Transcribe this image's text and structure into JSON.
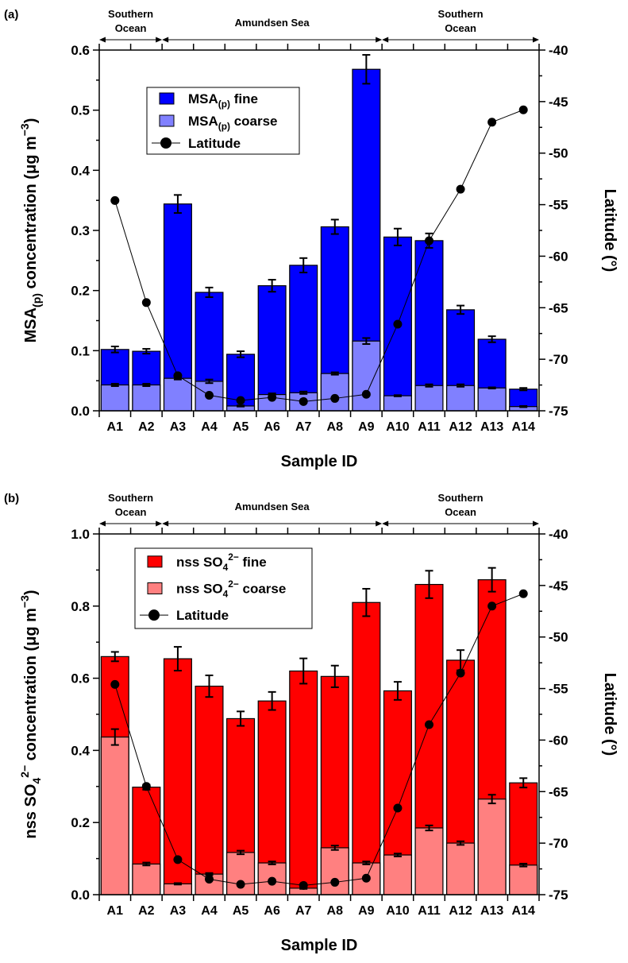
{
  "chart_data": [
    {
      "type": "bar",
      "stacked": true,
      "panel_label": "(a)",
      "regions": [
        {
          "label": [
            "Southern",
            "Ocean"
          ],
          "from": "A1",
          "to": "A2"
        },
        {
          "label": [
            "Amundsen Sea"
          ],
          "from": "A3",
          "to": "A9"
        },
        {
          "label": [
            "Southern",
            "Ocean"
          ],
          "from": "A10",
          "to": "A14"
        }
      ],
      "categories": [
        "A1",
        "A2",
        "A3",
        "A4",
        "A5",
        "A6",
        "A7",
        "A8",
        "A9",
        "A10",
        "A11",
        "A12",
        "A13",
        "A14"
      ],
      "xlabel": "Sample ID",
      "ylabel_parts": [
        {
          "t": "MSA"
        },
        {
          "t": "(p)",
          "sub": true
        },
        {
          "t": " concentration (μg m"
        },
        {
          "t": "−3",
          "sup": true
        },
        {
          "t": ")"
        }
      ],
      "ylim": [
        0,
        0.6
      ],
      "yticks": [
        "0.0",
        "0.1",
        "0.2",
        "0.3",
        "0.4",
        "0.5",
        "0.6"
      ],
      "y2label": "Latitude (°)",
      "y2lim": [
        -75,
        -40
      ],
      "y2ticks": [
        "-75",
        "-70",
        "-65",
        "-60",
        "-55",
        "-50",
        "-45",
        "-40"
      ],
      "legend_placement": "top-left",
      "series": [
        {
          "name_parts": [
            {
              "t": "MSA"
            },
            {
              "t": "(p)",
              "sub": true
            },
            {
              "t": " fine"
            }
          ],
          "role": "total",
          "color": "#0000ff",
          "values": [
            0.102,
            0.099,
            0.344,
            0.197,
            0.094,
            0.208,
            0.242,
            0.306,
            0.568,
            0.289,
            0.283,
            0.168,
            0.119,
            0.036
          ],
          "errors": [
            0.005,
            0.004,
            0.015,
            0.008,
            0.005,
            0.01,
            0.012,
            0.012,
            0.024,
            0.014,
            0.012,
            0.007,
            0.005,
            0.002
          ]
        },
        {
          "name_parts": [
            {
              "t": "MSA"
            },
            {
              "t": "(p)",
              "sub": true
            },
            {
              "t": " coarse"
            }
          ],
          "role": "coarse",
          "color": "#8080ff",
          "values": [
            0.043,
            0.043,
            0.054,
            0.049,
            0.008,
            0.027,
            0.03,
            0.062,
            0.116,
            0.025,
            0.042,
            0.042,
            0.038,
            0.007
          ],
          "errors": [
            0.002,
            0.002,
            0.002,
            0.003,
            0.001,
            0.002,
            0.002,
            0.002,
            0.005,
            0.001,
            0.002,
            0.002,
            0.001,
            0.001
          ]
        },
        {
          "name_parts": [
            {
              "t": "Latitude"
            }
          ],
          "role": "line",
          "axis": "right",
          "color": "#000000",
          "values": [
            -54.6,
            -64.5,
            -71.6,
            -73.5,
            -74.0,
            -73.7,
            -74.1,
            -73.8,
            -73.4,
            -66.6,
            -58.5,
            -53.5,
            -47.0,
            -45.8
          ]
        }
      ]
    },
    {
      "type": "bar",
      "stacked": true,
      "panel_label": "(b)",
      "regions": [
        {
          "label": [
            "Southern",
            "Ocean"
          ],
          "from": "A1",
          "to": "A2"
        },
        {
          "label": [
            "Amundsen Sea"
          ],
          "from": "A3",
          "to": "A9"
        },
        {
          "label": [
            "Southern",
            "Ocean"
          ],
          "from": "A10",
          "to": "A14"
        }
      ],
      "categories": [
        "A1",
        "A2",
        "A3",
        "A4",
        "A5",
        "A6",
        "A7",
        "A8",
        "A9",
        "A10",
        "A11",
        "A12",
        "A13",
        "A14"
      ],
      "xlabel": "Sample ID",
      "ylabel_parts": [
        {
          "t": "nss SO"
        },
        {
          "t": "4",
          "sub": true
        },
        {
          "t": "2−",
          "sup": true
        },
        {
          "t": " concentration (μg m"
        },
        {
          "t": "−3",
          "sup": true
        },
        {
          "t": ")"
        }
      ],
      "ylim": [
        0,
        1.0
      ],
      "yticks": [
        "0.0",
        "0.2",
        "0.4",
        "0.6",
        "0.8",
        "1.0"
      ],
      "y2label": "Latitude (°)",
      "y2lim": [
        -75,
        -40
      ],
      "y2ticks": [
        "-75",
        "-70",
        "-65",
        "-60",
        "-55",
        "-50",
        "-45",
        "-40"
      ],
      "legend_placement": "top-left",
      "series": [
        {
          "name_parts": [
            {
              "t": "nss SO"
            },
            {
              "t": "4",
              "sub": true
            },
            {
              "t": "2−",
              "sup": true
            },
            {
              "t": " fine"
            }
          ],
          "role": "total",
          "color": "#ff0000",
          "values": [
            0.66,
            0.298,
            0.654,
            0.578,
            0.488,
            0.537,
            0.62,
            0.605,
            0.81,
            0.565,
            0.86,
            0.65,
            0.873,
            0.31
          ],
          "errors": [
            0.013,
            0.007,
            0.033,
            0.03,
            0.02,
            0.025,
            0.035,
            0.03,
            0.038,
            0.025,
            0.038,
            0.028,
            0.033,
            0.013
          ]
        },
        {
          "name_parts": [
            {
              "t": "nss SO"
            },
            {
              "t": "4",
              "sub": true
            },
            {
              "t": "2−",
              "sup": true
            },
            {
              "t": " coarse"
            }
          ],
          "role": "coarse",
          "color": "#ff8080",
          "values": [
            0.437,
            0.085,
            0.03,
            0.057,
            0.117,
            0.088,
            0.018,
            0.13,
            0.088,
            0.11,
            0.185,
            0.143,
            0.265,
            0.082
          ],
          "errors": [
            0.022,
            0.004,
            0.002,
            0.003,
            0.005,
            0.004,
            0.002,
            0.006,
            0.004,
            0.004,
            0.007,
            0.005,
            0.012,
            0.004
          ]
        },
        {
          "name_parts": [
            {
              "t": "Latitude"
            }
          ],
          "role": "line",
          "axis": "right",
          "color": "#000000",
          "values": [
            -54.6,
            -64.5,
            -71.6,
            -73.5,
            -74.0,
            -73.7,
            -74.1,
            -73.8,
            -73.4,
            -66.6,
            -58.5,
            -53.5,
            -47.0,
            -45.8
          ]
        }
      ]
    }
  ]
}
